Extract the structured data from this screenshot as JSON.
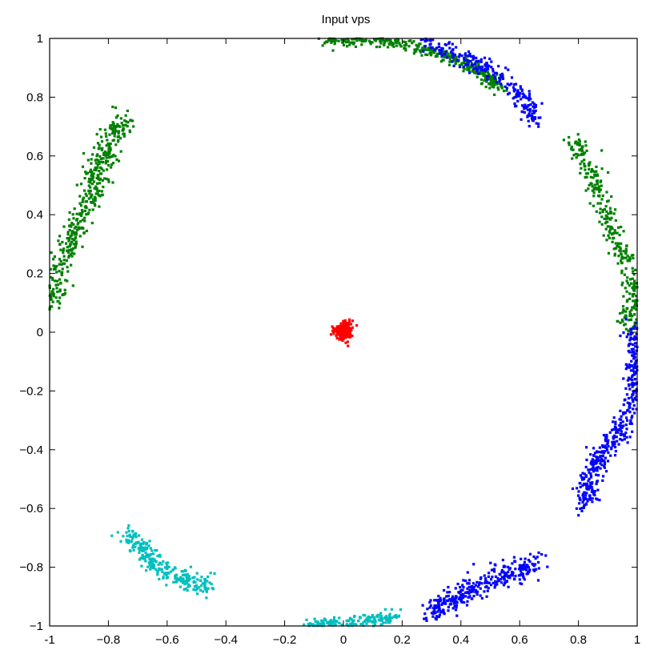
{
  "chart_data": {
    "type": "scatter",
    "title": "Input vps",
    "xlabel": "",
    "ylabel": "",
    "xlim": [
      -1,
      1
    ],
    "ylim": [
      -1,
      1
    ],
    "xticks": [
      -1,
      -0.8,
      -0.6,
      -0.4,
      -0.2,
      0,
      0.2,
      0.4,
      0.6,
      0.8,
      1
    ],
    "yticks": [
      -1,
      -0.8,
      -0.6,
      -0.4,
      -0.2,
      0,
      0.2,
      0.4,
      0.6,
      0.8,
      1
    ],
    "xtick_labels": [
      "-1",
      "−0.8",
      "−0.6",
      "−0.4",
      "−0.2",
      "0",
      "0.2",
      "0.4",
      "0.6",
      "0.8",
      "1"
    ],
    "ytick_labels": [
      "−1",
      "−0.8",
      "−0.6",
      "−0.4",
      "−0.2",
      "0",
      "0.2",
      "0.4",
      "0.6",
      "0.8",
      "1"
    ],
    "grid": false,
    "legend": "none",
    "series": [
      {
        "color": "#008000",
        "clusters": [
          {
            "path": [
              [
                -0.99,
                0.09
              ],
              [
                -0.97,
                0.17
              ],
              [
                -0.95,
                0.26
              ],
              [
                -0.92,
                0.33
              ],
              [
                -0.89,
                0.4
              ],
              [
                -0.86,
                0.47
              ],
              [
                -0.84,
                0.53
              ],
              [
                -0.82,
                0.59
              ],
              [
                -0.8,
                0.64
              ],
              [
                -0.77,
                0.69
              ],
              [
                -0.74,
                0.72
              ]
            ],
            "spread": 0.022,
            "n": 420
          },
          {
            "path": [
              [
                -0.06,
                0.995
              ],
              [
                0.05,
                0.995
              ],
              [
                0.15,
                0.99
              ],
              [
                0.25,
                0.97
              ],
              [
                0.33,
                0.95
              ],
              [
                0.4,
                0.92
              ],
              [
                0.46,
                0.89
              ],
              [
                0.5,
                0.86
              ],
              [
                0.54,
                0.83
              ]
            ],
            "spread": 0.012,
            "n": 360
          },
          {
            "path": [
              [
                0.78,
                0.66
              ],
              [
                0.82,
                0.59
              ],
              [
                0.85,
                0.52
              ],
              [
                0.88,
                0.44
              ],
              [
                0.91,
                0.37
              ],
              [
                0.94,
                0.3
              ],
              [
                0.97,
                0.22
              ],
              [
                0.99,
                0.14
              ],
              [
                0.98,
                0.06
              ],
              [
                0.96,
                0.03
              ]
            ],
            "spread": 0.018,
            "n": 320
          }
        ]
      },
      {
        "color": "#0000ff",
        "clusters": [
          {
            "path": [
              [
                0.28,
                0.99
              ],
              [
                0.35,
                0.96
              ],
              [
                0.42,
                0.93
              ],
              [
                0.5,
                0.89
              ],
              [
                0.56,
                0.85
              ],
              [
                0.6,
                0.8
              ],
              [
                0.63,
                0.76
              ],
              [
                0.66,
                0.72
              ]
            ],
            "spread": 0.016,
            "n": 240
          },
          {
            "path": [
              [
                0.99,
                0.02
              ],
              [
                0.99,
                -0.08
              ],
              [
                0.99,
                -0.16
              ],
              [
                0.98,
                -0.24
              ],
              [
                0.96,
                -0.3
              ],
              [
                0.93,
                -0.35
              ],
              [
                0.89,
                -0.4
              ],
              [
                0.86,
                -0.45
              ],
              [
                0.84,
                -0.5
              ],
              [
                0.83,
                -0.55
              ],
              [
                0.82,
                -0.59
              ]
            ],
            "spread": 0.018,
            "n": 400
          },
          {
            "path": [
              [
                0.66,
                -0.78
              ],
              [
                0.6,
                -0.81
              ],
              [
                0.54,
                -0.83
              ],
              [
                0.47,
                -0.86
              ],
              [
                0.42,
                -0.89
              ],
              [
                0.38,
                -0.91
              ],
              [
                0.33,
                -0.93
              ],
              [
                0.3,
                -0.96
              ]
            ],
            "spread": 0.02,
            "n": 330
          }
        ]
      },
      {
        "color": "#00bfbf",
        "clusters": [
          {
            "path": [
              [
                -0.73,
                -0.68
              ],
              [
                -0.7,
                -0.72
              ],
              [
                -0.67,
                -0.76
              ],
              [
                -0.64,
                -0.79
              ],
              [
                -0.6,
                -0.82
              ],
              [
                -0.55,
                -0.84
              ],
              [
                -0.5,
                -0.85
              ],
              [
                -0.45,
                -0.87
              ]
            ],
            "spread": 0.018,
            "n": 260
          },
          {
            "path": [
              [
                -0.12,
                -0.995
              ],
              [
                -0.05,
                -0.99
              ],
              [
                0.02,
                -0.99
              ],
              [
                0.08,
                -0.98
              ],
              [
                0.14,
                -0.975
              ],
              [
                0.18,
                -0.96
              ]
            ],
            "spread": 0.01,
            "n": 160
          }
        ]
      },
      {
        "color": "#ff0000",
        "clusters": [
          {
            "path": [
              [
                0.0,
                0.0
              ],
              [
                0.005,
                0.01
              ]
            ],
            "spread": 0.014,
            "n": 260
          }
        ]
      }
    ]
  }
}
